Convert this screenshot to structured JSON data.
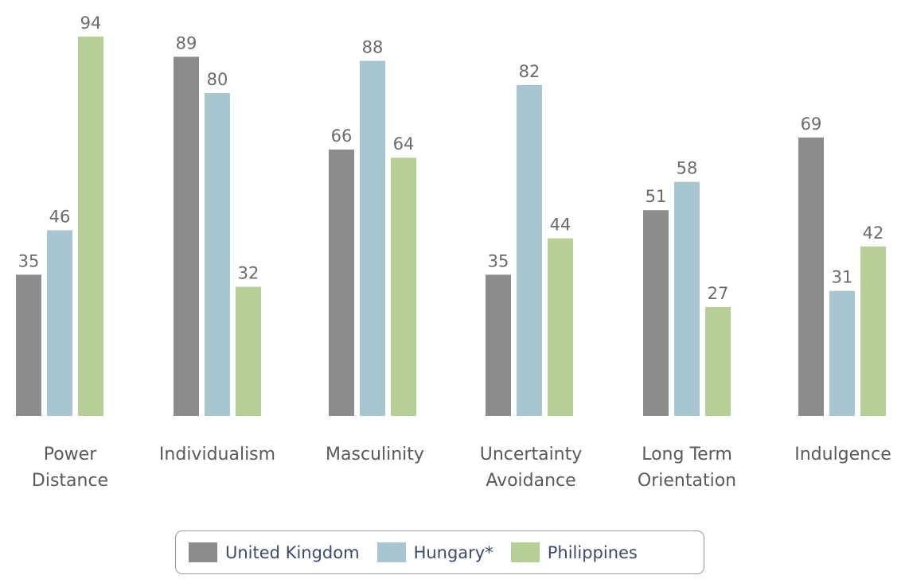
{
  "chart_data": {
    "type": "bar",
    "title": "",
    "xlabel": "",
    "ylabel": "",
    "ylim": [
      0,
      100
    ],
    "grid": false,
    "legend_position": "bottom-center",
    "categories": [
      [
        "Power",
        "Distance"
      ],
      [
        "Individualism"
      ],
      [
        "Masculinity"
      ],
      [
        "Uncertainty",
        "Avoidance"
      ],
      [
        "Long Term",
        "Orientation"
      ],
      [
        "Indulgence"
      ]
    ],
    "series": [
      {
        "name": "United Kingdom",
        "color": "#8c8c8c",
        "values": [
          35,
          89,
          66,
          35,
          51,
          69
        ]
      },
      {
        "name": "Hungary*",
        "color": "#a8c6d1",
        "values": [
          46,
          80,
          88,
          82,
          58,
          31
        ]
      },
      {
        "name": "Philippines",
        "color": "#b5cf96",
        "values": [
          94,
          32,
          64,
          44,
          27,
          42
        ]
      }
    ]
  }
}
